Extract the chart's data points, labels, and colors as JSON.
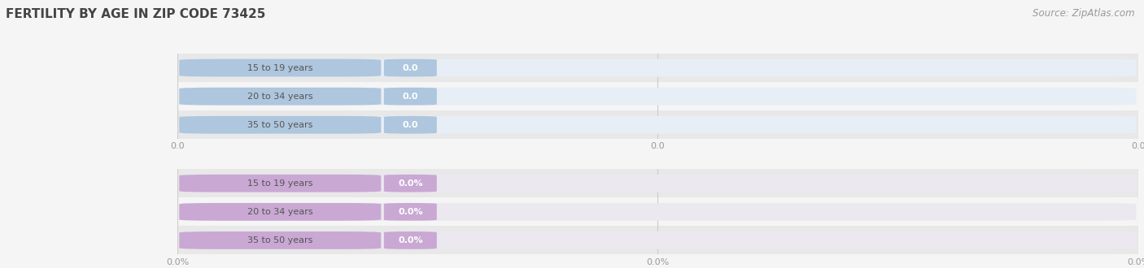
{
  "title": "FERTILITY BY AGE IN ZIP CODE 73425",
  "source_text": "Source: ZipAtlas.com",
  "top_chart": {
    "categories": [
      "15 to 19 years",
      "20 to 34 years",
      "35 to 50 years"
    ],
    "values": [
      0.0,
      0.0,
      0.0
    ],
    "bar_bg_color": "#e8eef5",
    "bar_fill_color": "#aec6de",
    "value_bg_color": "#aec6de",
    "value_text_color": "#ffffff",
    "label_text_color": "#555555",
    "tick_labels": [
      "0.0",
      "0.0",
      "0.0"
    ]
  },
  "bottom_chart": {
    "categories": [
      "15 to 19 years",
      "20 to 34 years",
      "35 to 50 years"
    ],
    "values": [
      0.0,
      0.0,
      0.0
    ],
    "bar_bg_color": "#ece8f0",
    "bar_fill_color": "#c9a8d4",
    "value_bg_color": "#c9a8d4",
    "value_text_color": "#ffffff",
    "label_text_color": "#555555",
    "tick_labels": [
      "0.0%",
      "0.0%",
      "0.0%"
    ]
  },
  "bg_color": "#f5f5f5",
  "row_alt_colors": [
    "#e8e8e8",
    "#f5f5f5"
  ],
  "grid_line_color": "#cccccc",
  "tick_text_color": "#999999",
  "fig_width": 14.06,
  "fig_height": 3.3,
  "title_color": "#444444",
  "source_color": "#999999"
}
